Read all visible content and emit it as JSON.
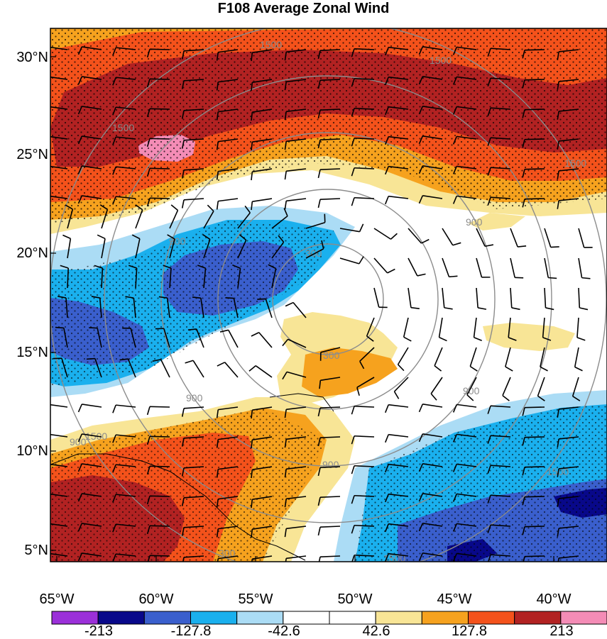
{
  "title": "F108 Average Zonal Wind",
  "latitude_labels": [
    "30°N",
    "25°N",
    "20°N",
    "15°N",
    "10°N",
    "5°N"
  ],
  "longitude_labels": [
    "65°W",
    "60°W",
    "55°W",
    "50°W",
    "45°W",
    "40°W"
  ],
  "colorbar": {
    "colors": [
      "#9b30d9",
      "#08088a",
      "#3a5fcd",
      "#1ab0ee",
      "#abdcf5",
      "#ffffff",
      "#ffffff",
      "#f8e596",
      "#f6a21e",
      "#f4521b",
      "#b22222",
      "#f48cb6"
    ],
    "tick_labels": [
      "-213",
      "-127.8",
      "-42.6",
      "42.6",
      "127.8",
      "213"
    ]
  },
  "contour_labels": [
    "1500",
    "1500",
    "1500",
    "1500",
    "900",
    "300",
    "900",
    "300",
    "900",
    "900",
    "900",
    "300",
    "900",
    "1500",
    "1500",
    "1500"
  ]
}
